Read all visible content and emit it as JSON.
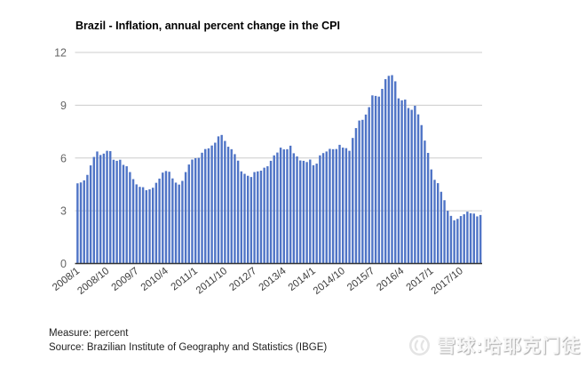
{
  "title": "Brazil - Inflation, annual percent change in the CPI",
  "footer": {
    "measure": "Measure: percent",
    "source": "Source: Brazilian Institute of Geography and Statistics (IBGE)"
  },
  "watermark": {
    "logo": "xueqiu-logo",
    "text": "雪球:哈耶克门徒"
  },
  "chart_data": {
    "type": "bar",
    "title": "Brazil - Inflation, annual percent change in the CPI",
    "xlabel": "",
    "ylabel": "percent",
    "ylim": [
      0,
      12
    ],
    "yticks": [
      0,
      3,
      6,
      9,
      12
    ],
    "grid": true,
    "legend": "none",
    "bar_color": "#4f74c6",
    "x_tick_labels": [
      "2008/1",
      "2008/10",
      "2009/7",
      "2010/4",
      "2011/1",
      "2011/10",
      "2012/7",
      "2013/4",
      "2014/1",
      "2014/10",
      "2015/7",
      "2016/4",
      "2017/1",
      "2017/10"
    ],
    "months": [
      "2008/1",
      "2008/2",
      "2008/3",
      "2008/4",
      "2008/5",
      "2008/6",
      "2008/7",
      "2008/8",
      "2008/9",
      "2008/10",
      "2008/11",
      "2008/12",
      "2009/1",
      "2009/2",
      "2009/3",
      "2009/4",
      "2009/5",
      "2009/6",
      "2009/7",
      "2009/8",
      "2009/9",
      "2009/10",
      "2009/11",
      "2009/12",
      "2010/1",
      "2010/2",
      "2010/3",
      "2010/4",
      "2010/5",
      "2010/6",
      "2010/7",
      "2010/8",
      "2010/9",
      "2010/10",
      "2010/11",
      "2010/12",
      "2011/1",
      "2011/2",
      "2011/3",
      "2011/4",
      "2011/5",
      "2011/6",
      "2011/7",
      "2011/8",
      "2011/9",
      "2011/10",
      "2011/11",
      "2011/12",
      "2012/1",
      "2012/2",
      "2012/3",
      "2012/4",
      "2012/5",
      "2012/6",
      "2012/7",
      "2012/8",
      "2012/9",
      "2012/10",
      "2012/11",
      "2012/12",
      "2013/1",
      "2013/2",
      "2013/3",
      "2013/4",
      "2013/5",
      "2013/6",
      "2013/7",
      "2013/8",
      "2013/9",
      "2013/10",
      "2013/11",
      "2013/12",
      "2014/1",
      "2014/2",
      "2014/3",
      "2014/4",
      "2014/5",
      "2014/6",
      "2014/7",
      "2014/8",
      "2014/9",
      "2014/10",
      "2014/11",
      "2014/12",
      "2015/1",
      "2015/2",
      "2015/3",
      "2015/4",
      "2015/5",
      "2015/6",
      "2015/7",
      "2015/8",
      "2015/9",
      "2015/10",
      "2015/11",
      "2015/12",
      "2016/1",
      "2016/2",
      "2016/3",
      "2016/4",
      "2016/5",
      "2016/6",
      "2016/7",
      "2016/8",
      "2016/9",
      "2016/10",
      "2016/11",
      "2016/12",
      "2017/1",
      "2017/2",
      "2017/3",
      "2017/4",
      "2017/5",
      "2017/6",
      "2017/7",
      "2017/8",
      "2017/9",
      "2017/10",
      "2017/11",
      "2017/12",
      "2018/1",
      "2018/2",
      "2018/3",
      "2018/4"
    ],
    "values": [
      4.56,
      4.61,
      4.73,
      5.04,
      5.58,
      6.06,
      6.37,
      6.17,
      6.25,
      6.41,
      6.39,
      5.9,
      5.84,
      5.9,
      5.61,
      5.53,
      5.2,
      4.8,
      4.5,
      4.36,
      4.34,
      4.17,
      4.22,
      4.31,
      4.59,
      4.83,
      5.17,
      5.26,
      5.22,
      4.84,
      4.6,
      4.49,
      4.7,
      5.2,
      5.63,
      5.91,
      5.99,
      6.01,
      6.3,
      6.51,
      6.55,
      6.71,
      6.87,
      7.23,
      7.31,
      6.97,
      6.64,
      6.5,
      6.22,
      5.85,
      5.24,
      5.1,
      4.99,
      4.92,
      5.2,
      5.24,
      5.28,
      5.45,
      5.53,
      5.84,
      6.15,
      6.31,
      6.59,
      6.49,
      6.5,
      6.7,
      6.27,
      6.09,
      5.86,
      5.84,
      5.77,
      5.91,
      5.59,
      5.68,
      6.15,
      6.28,
      6.37,
      6.52,
      6.5,
      6.51,
      6.75,
      6.59,
      6.56,
      6.41,
      7.14,
      7.7,
      8.13,
      8.17,
      8.47,
      8.89,
      9.56,
      9.53,
      9.49,
      9.93,
      10.48,
      10.67,
      10.71,
      10.36,
      9.39,
      9.28,
      9.32,
      8.84,
      8.74,
      8.97,
      8.48,
      7.87,
      6.99,
      6.29,
      5.35,
      4.76,
      4.57,
      4.08,
      3.6,
      3.0,
      2.71,
      2.46,
      2.54,
      2.7,
      2.8,
      2.95,
      2.86,
      2.84,
      2.68,
      2.76
    ]
  }
}
